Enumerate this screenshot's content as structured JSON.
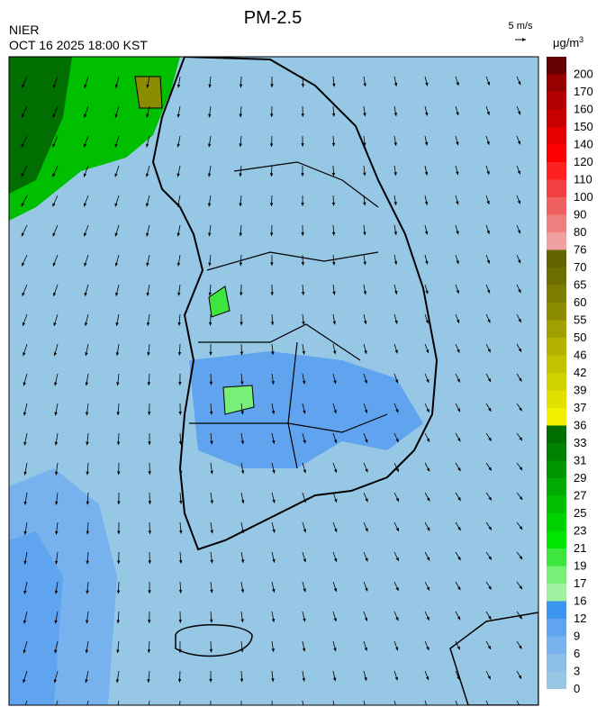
{
  "header": {
    "title": "PM-2.5",
    "agency": "NIER",
    "datetime": "OCT 16 2025 18:00 KST",
    "wind_scale": "5 m/s"
  },
  "legend": {
    "unit": {
      "base": "μg/m",
      "sup": "3"
    },
    "items": [
      {
        "label": 0,
        "color": "#96c8e6"
      },
      {
        "label": 3,
        "color": "#8cbee8"
      },
      {
        "label": 6,
        "color": "#78b2ee"
      },
      {
        "label": 9,
        "color": "#60a4f0"
      },
      {
        "label": 12,
        "color": "#3c96f0"
      },
      {
        "label": 16,
        "color": "#a0f0a0"
      },
      {
        "label": 17,
        "color": "#78f078"
      },
      {
        "label": 19,
        "color": "#3ce63c"
      },
      {
        "label": 21,
        "color": "#00e600"
      },
      {
        "label": 23,
        "color": "#00d200"
      },
      {
        "label": 25,
        "color": "#00be00"
      },
      {
        "label": 27,
        "color": "#00aa00"
      },
      {
        "label": 29,
        "color": "#009600"
      },
      {
        "label": 31,
        "color": "#008200"
      },
      {
        "label": 33,
        "color": "#006e00"
      },
      {
        "label": 36,
        "color": "#f0f000"
      },
      {
        "label": 37,
        "color": "#e1e100"
      },
      {
        "label": 39,
        "color": "#d2d200"
      },
      {
        "label": 42,
        "color": "#c3c300"
      },
      {
        "label": 46,
        "color": "#b4b400"
      },
      {
        "label": 50,
        "color": "#a0a000"
      },
      {
        "label": 55,
        "color": "#8c8c00"
      },
      {
        "label": 60,
        "color": "#7d7d00"
      },
      {
        "label": 65,
        "color": "#6e6e00"
      },
      {
        "label": 70,
        "color": "#646400"
      },
      {
        "label": 76,
        "color": "#f0a0a0"
      },
      {
        "label": 80,
        "color": "#f08080"
      },
      {
        "label": 90,
        "color": "#f06060"
      },
      {
        "label": 100,
        "color": "#f04040"
      },
      {
        "label": 110,
        "color": "#ff2020"
      },
      {
        "label": 120,
        "color": "#ff0000"
      },
      {
        "label": 140,
        "color": "#e60000"
      },
      {
        "label": 150,
        "color": "#c80000"
      },
      {
        "label": 160,
        "color": "#b40000"
      },
      {
        "label": 170,
        "color": "#960000"
      },
      {
        "label": 200,
        "color": "#640000"
      }
    ]
  }
}
